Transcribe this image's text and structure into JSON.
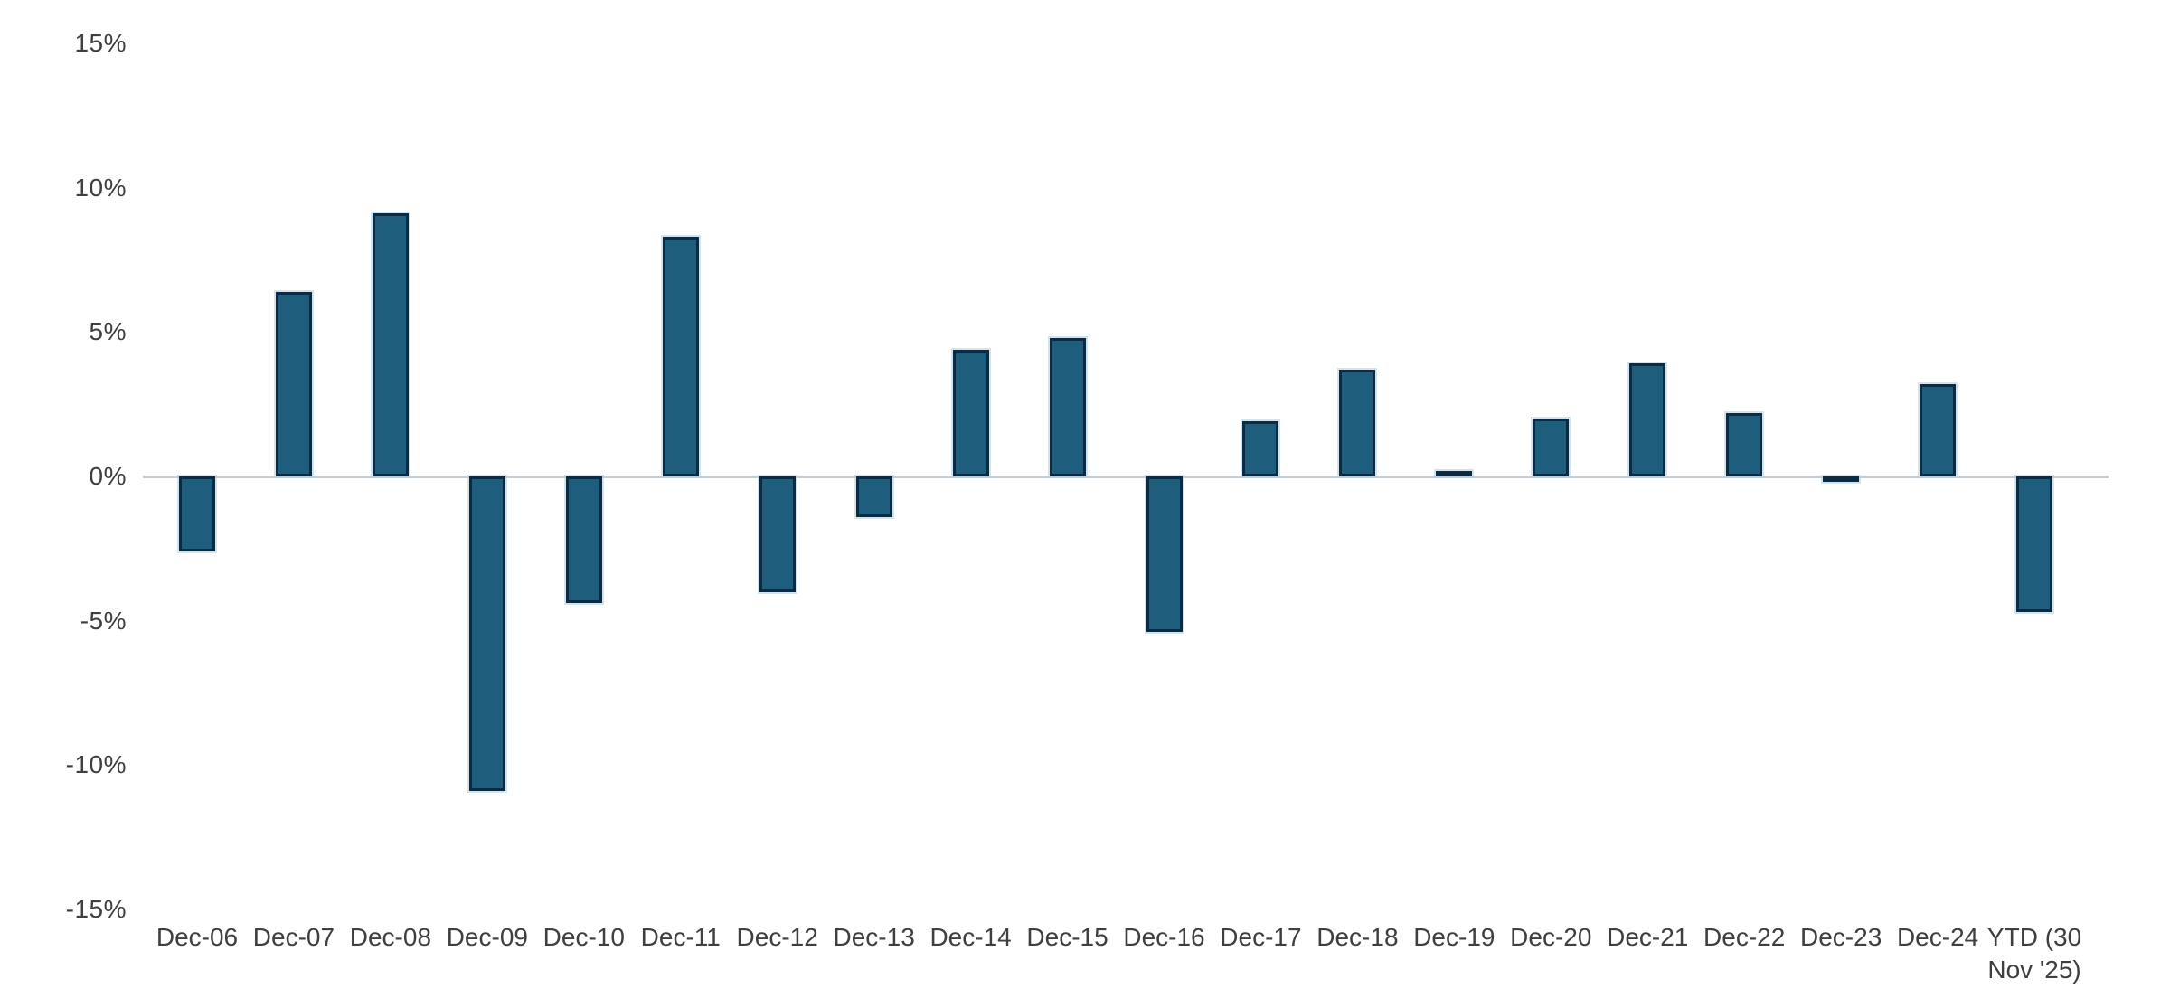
{
  "chart_data": {
    "type": "bar",
    "title": "",
    "xlabel": "",
    "ylabel": "",
    "categories": [
      "Dec-06",
      "Dec-07",
      "Dec-08",
      "Dec-09",
      "Dec-10",
      "Dec-11",
      "Dec-12",
      "Dec-13",
      "Dec-14",
      "Dec-15",
      "Dec-16",
      "Dec-17",
      "Dec-18",
      "Dec-19",
      "Dec-20",
      "Dec-21",
      "Dec-22",
      "Dec-23",
      "Dec-24",
      "YTD (30\nNov '25)"
    ],
    "values": [
      -2.6,
      6.4,
      9.1,
      -10.9,
      -4.4,
      8.3,
      -4.0,
      -1.4,
      4.4,
      4.8,
      -5.4,
      1.9,
      3.7,
      0.2,
      2.0,
      3.9,
      2.2,
      -0.2,
      3.2,
      -4.7
    ],
    "unit": "%",
    "ylim": [
      -15,
      15
    ],
    "y_ticks": [
      "15%",
      "10%",
      "5%",
      "0%",
      "-5%",
      "-10%",
      "-15%"
    ],
    "y_tick_values": [
      15,
      10,
      5,
      0,
      -5,
      -10,
      -15
    ],
    "grid": "off",
    "legend": "none",
    "baseline_axis": "zero",
    "colors": {
      "bar_fill": "#1f5d7c",
      "bar_border": "#0b2b45",
      "axis_line": "#c9cdd1",
      "label_text": "#3f3f3f",
      "background": "#ffffff"
    }
  }
}
